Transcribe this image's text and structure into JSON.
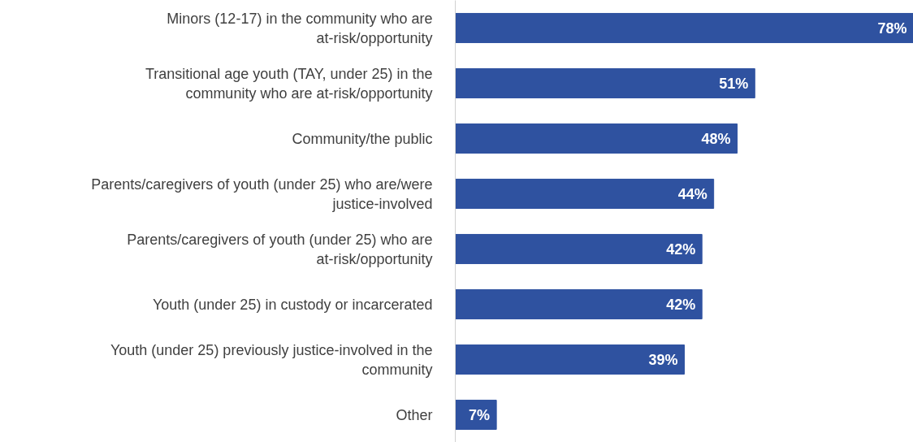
{
  "chart_data": {
    "type": "bar",
    "orientation": "horizontal",
    "categories": [
      "Minors (12-17) in the community who are at-risk/opportunity",
      "Transitional age youth (TAY, under 25) in the community who are at-risk/opportunity",
      "Community/the public",
      "Parents/caregivers of youth (under 25) who are/were justice-involved",
      "Parents/caregivers of youth (under 25) who are at-risk/opportunity",
      "Youth (under 25) in custody or incarcerated",
      "Youth (under 25) previously justice-involved in the community",
      "Other"
    ],
    "values": [
      78,
      51,
      48,
      44,
      42,
      42,
      39,
      7
    ],
    "value_labels": [
      "78%",
      "51%",
      "48%",
      "44%",
      "42%",
      "42%",
      "39%",
      "7%"
    ],
    "color": "#2f52a0",
    "tick_labels": "y",
    "grid": false
  }
}
